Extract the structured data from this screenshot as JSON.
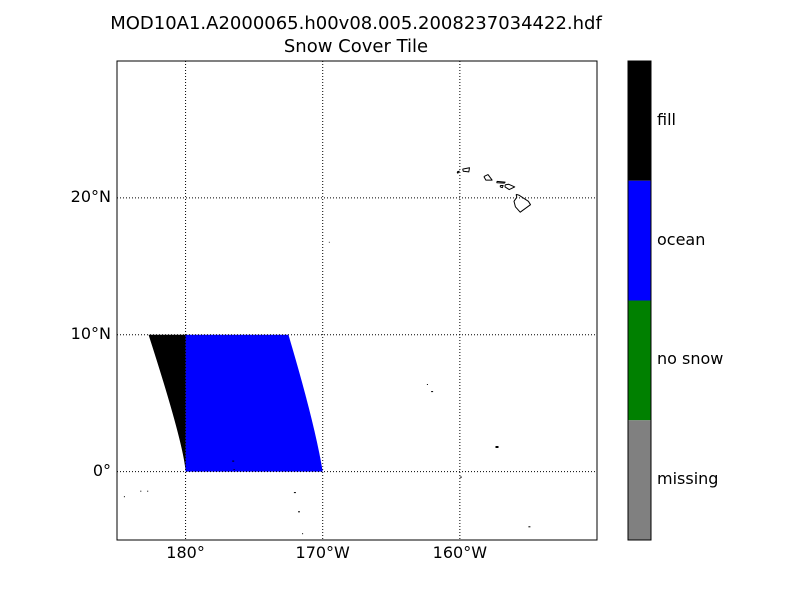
{
  "title_line1": "MOD10A1.A2000065.h00v08.005.2008237034422.hdf",
  "title_line2": "Snow Cover Tile",
  "chart_data": {
    "type": "map",
    "projection": "plate carree",
    "lon_range": [
      -175,
      -140
    ],
    "lat_range": [
      -5,
      30
    ],
    "grid": true,
    "lat_ticks": [
      {
        "value": 0,
        "label": "0°"
      },
      {
        "value": 10,
        "label": "10°N"
      },
      {
        "value": 20,
        "label": "20°N"
      }
    ],
    "lon_ticks": [
      {
        "value": -180,
        "label": "180°"
      },
      {
        "value": -170,
        "label": "170°W"
      },
      {
        "value": -160,
        "label": "160°W"
      }
    ],
    "colorbar": {
      "position": "right",
      "classes": [
        {
          "label": "fill",
          "color": "#000000"
        },
        {
          "label": "ocean",
          "color": "#0000ff"
        },
        {
          "label": "no snow",
          "color": "#008000"
        },
        {
          "label": "missing",
          "color": "#808080"
        }
      ]
    },
    "tile": {
      "lat_range": [
        0,
        10
      ],
      "fill_lon_west_at_lat0": -180,
      "fill_lon_west_at_lat10": -182.7,
      "ocean_lon_east_at_lat0": -170,
      "ocean_lon_east_at_lat10": -172.5
    }
  }
}
